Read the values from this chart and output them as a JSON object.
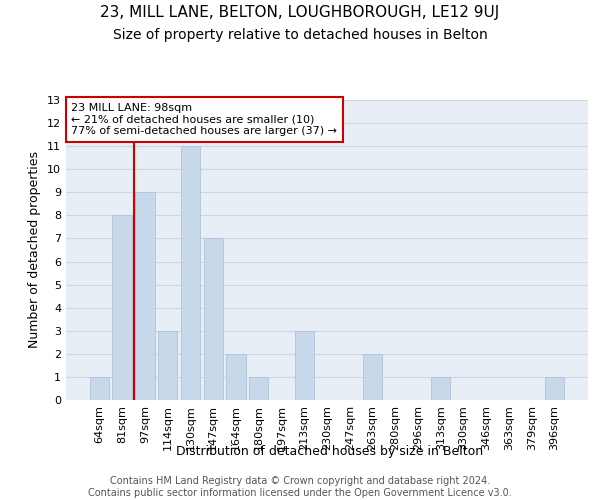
{
  "title": "23, MILL LANE, BELTON, LOUGHBOROUGH, LE12 9UJ",
  "subtitle": "Size of property relative to detached houses in Belton",
  "xlabel": "Distribution of detached houses by size in Belton",
  "ylabel": "Number of detached properties",
  "categories": [
    "64sqm",
    "81sqm",
    "97sqm",
    "114sqm",
    "130sqm",
    "147sqm",
    "164sqm",
    "180sqm",
    "197sqm",
    "213sqm",
    "230sqm",
    "247sqm",
    "263sqm",
    "280sqm",
    "296sqm",
    "313sqm",
    "330sqm",
    "346sqm",
    "363sqm",
    "379sqm",
    "396sqm"
  ],
  "values": [
    1,
    8,
    9,
    3,
    11,
    7,
    2,
    1,
    0,
    3,
    0,
    0,
    2,
    0,
    0,
    1,
    0,
    0,
    0,
    0,
    1
  ],
  "bar_color": "#c8d8eb",
  "bar_edge_color": "#b0c4d8",
  "vline_color": "#cc0000",
  "vline_x": 1.5,
  "annotation_text": "23 MILL LANE: 98sqm\n← 21% of detached houses are smaller (10)\n77% of semi-detached houses are larger (37) →",
  "annotation_box_color": "white",
  "annotation_box_edge": "#cc0000",
  "ylim": [
    0,
    13
  ],
  "yticks": [
    0,
    1,
    2,
    3,
    4,
    5,
    6,
    7,
    8,
    9,
    10,
    11,
    12,
    13
  ],
  "grid_color": "#ccd6e0",
  "background_color": "#e8eef5",
  "footer_line1": "Contains HM Land Registry data © Crown copyright and database right 2024.",
  "footer_line2": "Contains public sector information licensed under the Open Government Licence v3.0.",
  "title_fontsize": 11,
  "subtitle_fontsize": 10,
  "label_fontsize": 9,
  "tick_fontsize": 8,
  "footer_fontsize": 7
}
